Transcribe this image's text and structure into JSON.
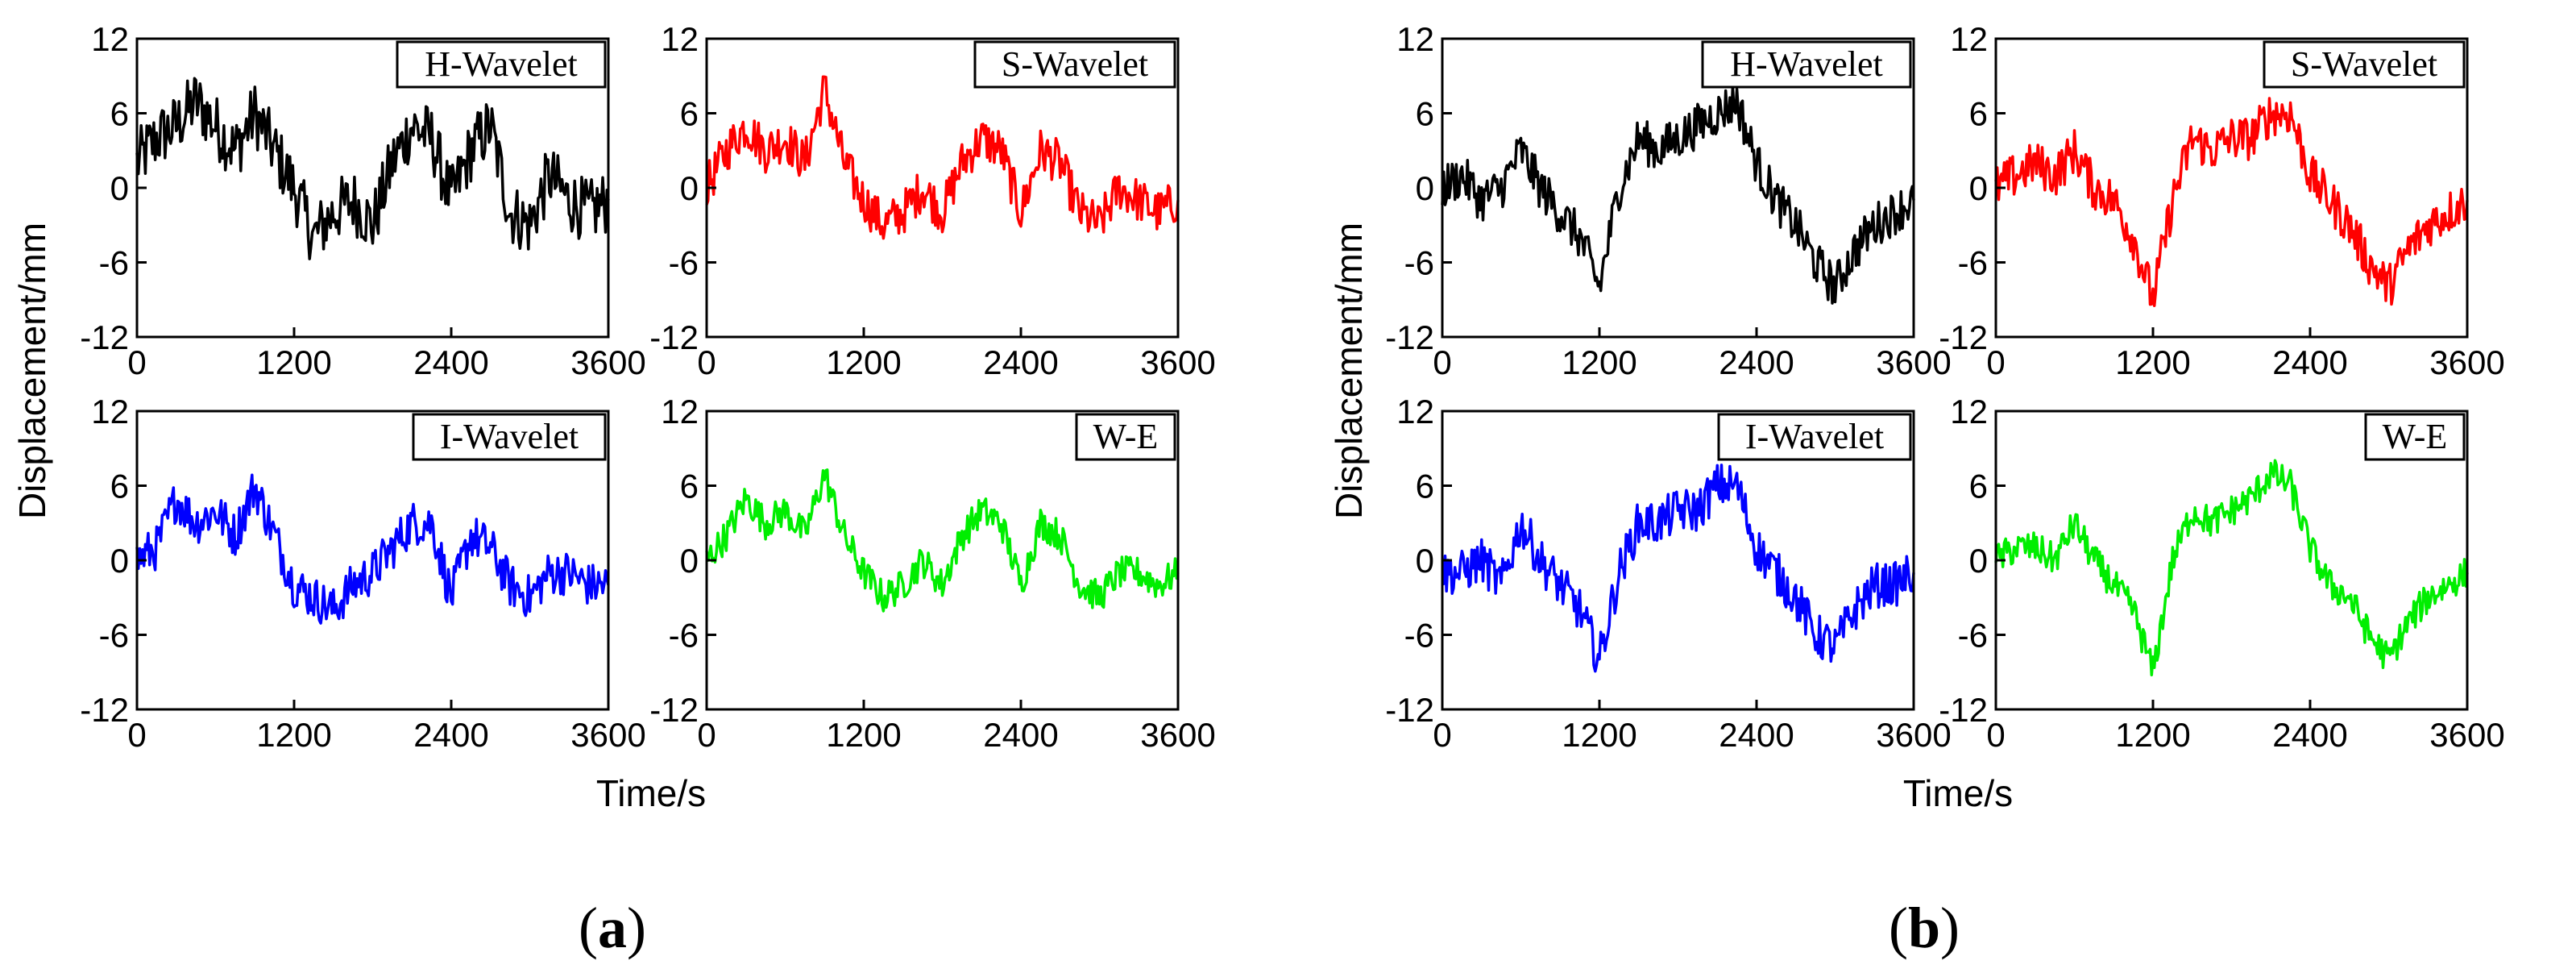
{
  "figure": {
    "panel_labels": [
      {
        "open": "(",
        "letter": "a",
        "close": ")"
      },
      {
        "open": "(",
        "letter": "b",
        "close": ")"
      }
    ],
    "ylabel": "Displacement/mm",
    "xlabel": "Time/s"
  },
  "colors": {
    "H-Wavelet": "#000000",
    "S-Wavelet": "#ff0000",
    "I-Wavelet": "#0000ff",
    "W-E": "#00ee00"
  },
  "chart_data": [
    {
      "group": "a",
      "type": "line",
      "legend": "H-Wavelet",
      "xlim": [
        0,
        3600
      ],
      "ylim": [
        -12,
        12
      ],
      "xticks": [
        "0",
        "1200",
        "2400",
        "3600"
      ],
      "yticks": [
        "-12",
        "-6",
        "0",
        "6",
        "12"
      ],
      "x": [
        0,
        150,
        300,
        450,
        600,
        750,
        900,
        1050,
        1200,
        1350,
        1500,
        1650,
        1800,
        1950,
        2100,
        2250,
        2400,
        2550,
        2700,
        2850,
        3000,
        3150,
        3300,
        3450,
        3600
      ],
      "y": [
        2,
        4,
        5,
        7,
        5,
        3,
        6,
        3,
        0,
        -4,
        -2,
        -1,
        -3,
        2,
        5,
        4,
        -1,
        3,
        5,
        -2,
        -3,
        1,
        -1,
        -2,
        -1
      ]
    },
    {
      "group": "a",
      "type": "line",
      "legend": "S-Wavelet",
      "xlim": [
        0,
        3600
      ],
      "ylim": [
        -12,
        12
      ],
      "xticks": [
        "0",
        "1200",
        "2400",
        "3600"
      ],
      "yticks": [
        "-12",
        "-6",
        "0",
        "6",
        "12"
      ],
      "x": [
        0,
        150,
        300,
        450,
        600,
        750,
        900,
        1050,
        1200,
        1350,
        1500,
        1650,
        1800,
        1950,
        2100,
        2250,
        2400,
        2550,
        2700,
        2850,
        3000,
        3150,
        3300,
        3450,
        3600
      ],
      "y": [
        0,
        3,
        5,
        3,
        4,
        2,
        8,
        2,
        -1,
        -3,
        -2,
        0,
        -2,
        2,
        4,
        3,
        -2,
        3,
        2,
        -2,
        -3,
        0,
        -1,
        -2,
        -1
      ]
    },
    {
      "group": "a",
      "type": "line",
      "legend": "I-Wavelet",
      "xlim": [
        0,
        3600
      ],
      "ylim": [
        -12,
        12
      ],
      "xticks": [
        "0",
        "1200",
        "2400",
        "3600"
      ],
      "yticks": [
        "-12",
        "-6",
        "0",
        "6",
        "12"
      ],
      "x": [
        0,
        150,
        300,
        450,
        600,
        750,
        900,
        1050,
        1200,
        1350,
        1500,
        1650,
        1800,
        1950,
        2100,
        2250,
        2400,
        2550,
        2700,
        2850,
        3000,
        3150,
        3300,
        3450,
        3600
      ],
      "y": [
        0,
        1,
        5,
        3,
        4,
        2,
        6,
        2,
        -2,
        -3,
        -4,
        -2,
        -1,
        1,
        3,
        3,
        -3,
        2,
        1,
        -2,
        -3,
        -1,
        -1,
        -2,
        -2
      ]
    },
    {
      "group": "a",
      "type": "line",
      "legend": "W-E",
      "xlim": [
        0,
        3600
      ],
      "ylim": [
        -12,
        12
      ],
      "xticks": [
        "0",
        "1200",
        "2400",
        "3600"
      ],
      "yticks": [
        "-12",
        "-6",
        "0",
        "6",
        "12"
      ],
      "x": [
        0,
        150,
        300,
        450,
        600,
        750,
        900,
        1050,
        1200,
        1350,
        1500,
        1650,
        1800,
        1950,
        2100,
        2250,
        2400,
        2550,
        2700,
        2850,
        3000,
        3150,
        3300,
        3450,
        3600
      ],
      "y": [
        0,
        2,
        5,
        3,
        4,
        2,
        7,
        2,
        -1,
        -3,
        -2,
        0,
        -2,
        2,
        4,
        3,
        -2,
        3,
        2,
        -2,
        -3,
        -1,
        -1,
        -2,
        -1
      ]
    },
    {
      "group": "b",
      "type": "line",
      "legend": "H-Wavelet",
      "xlim": [
        0,
        3600
      ],
      "ylim": [
        -12,
        12
      ],
      "xticks": [
        "0",
        "1200",
        "2400",
        "3600"
      ],
      "yticks": [
        "-12",
        "-6",
        "0",
        "6",
        "12"
      ],
      "x": [
        0,
        150,
        300,
        450,
        600,
        750,
        900,
        1050,
        1200,
        1350,
        1500,
        1650,
        1800,
        1950,
        2100,
        2250,
        2400,
        2550,
        2700,
        2850,
        3000,
        3150,
        3300,
        3450,
        3600
      ],
      "y": [
        0,
        1,
        -1,
        0,
        3,
        0,
        -2,
        -4,
        -8,
        0,
        4,
        3,
        4,
        5,
        6,
        7,
        2,
        -1,
        -3,
        -6,
        -8,
        -5,
        -3,
        -2,
        -1
      ]
    },
    {
      "group": "b",
      "type": "line",
      "legend": "S-Wavelet",
      "xlim": [
        0,
        3600
      ],
      "ylim": [
        -12,
        12
      ],
      "xticks": [
        "0",
        "1200",
        "2400",
        "3600"
      ],
      "yticks": [
        "-12",
        "-6",
        "0",
        "6",
        "12"
      ],
      "x": [
        0,
        150,
        300,
        450,
        600,
        750,
        900,
        1050,
        1200,
        1350,
        1500,
        1650,
        1800,
        1950,
        2100,
        2250,
        2400,
        2550,
        2700,
        2850,
        3000,
        3150,
        3300,
        3450,
        3600
      ],
      "y": [
        0,
        1,
        2,
        1,
        3,
        0,
        -1,
        -4,
        -9,
        -1,
        4,
        3,
        4,
        4,
        6,
        6,
        1,
        -1,
        -3,
        -6,
        -8,
        -5,
        -3,
        -2,
        -1
      ]
    },
    {
      "group": "b",
      "type": "line",
      "legend": "I-Wavelet",
      "xlim": [
        0,
        3600
      ],
      "ylim": [
        -12,
        12
      ],
      "xticks": [
        "0",
        "1200",
        "2400",
        "3600"
      ],
      "yticks": [
        "-12",
        "-6",
        "0",
        "6",
        "12"
      ],
      "x": [
        0,
        150,
        300,
        450,
        600,
        750,
        900,
        1050,
        1200,
        1350,
        1500,
        1650,
        1800,
        1950,
        2100,
        2250,
        2400,
        2550,
        2700,
        2850,
        3000,
        3150,
        3300,
        3450,
        3600
      ],
      "y": [
        -1,
        -1,
        0,
        -2,
        3,
        0,
        -2,
        -4,
        -8,
        -1,
        3,
        3,
        4,
        4,
        6,
        6,
        1,
        -1,
        -3,
        -6,
        -7,
        -4,
        -2,
        -2,
        -1
      ]
    },
    {
      "group": "b",
      "type": "line",
      "legend": "W-E",
      "xlim": [
        0,
        3600
      ],
      "ylim": [
        -12,
        12
      ],
      "xticks": [
        "0",
        "1200",
        "2400",
        "3600"
      ],
      "yticks": [
        "-12",
        "-6",
        "0",
        "6",
        "12"
      ],
      "x": [
        0,
        150,
        300,
        450,
        600,
        750,
        900,
        1050,
        1200,
        1350,
        1500,
        1650,
        1800,
        1950,
        2100,
        2250,
        2400,
        2550,
        2700,
        2850,
        3000,
        3150,
        3300,
        3450,
        3600
      ],
      "y": [
        0,
        1,
        1,
        0,
        3,
        0,
        -2,
        -4,
        -9,
        0,
        4,
        3,
        4,
        5,
        7,
        6,
        1,
        -2,
        -3,
        -6,
        -8,
        -5,
        -3,
        -2,
        -1
      ]
    }
  ]
}
